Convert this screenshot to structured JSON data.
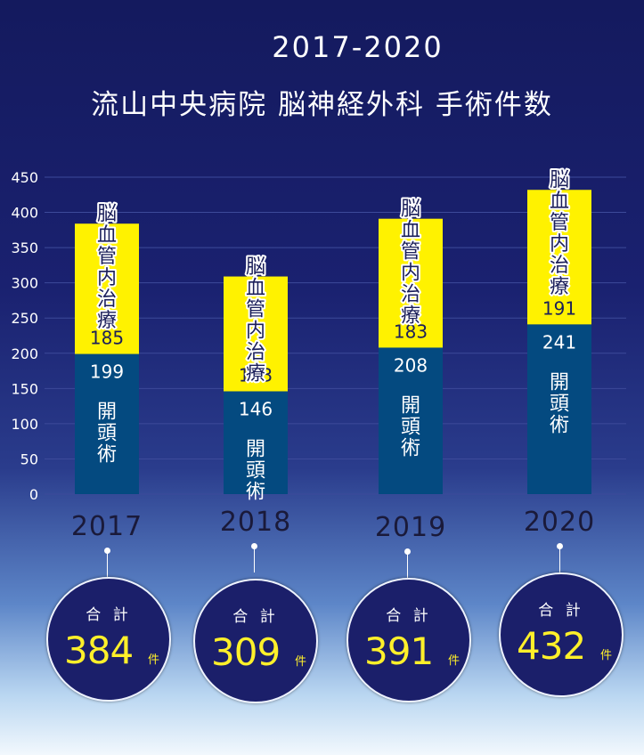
{
  "title": "2017-2020",
  "subtitle": "流山中央病院 脳神経外科 手術件数",
  "chart_data": {
    "type": "bar",
    "stacked": true,
    "categories": [
      "2017",
      "2018",
      "2019",
      "2020"
    ],
    "series": [
      {
        "name": "開頭術",
        "values": [
          199,
          146,
          208,
          241
        ],
        "color": "#044a80"
      },
      {
        "name": "脳血管内治療",
        "values": [
          185,
          163,
          183,
          191
        ],
        "color": "#fff200"
      }
    ],
    "ylim": [
      0,
      450
    ],
    "yticks": [
      "0",
      "50",
      "100",
      "150",
      "200",
      "250",
      "300",
      "350",
      "400",
      "450"
    ],
    "grid": true
  },
  "totals": {
    "label": "合 計",
    "unit": "件",
    "values": [
      "384",
      "309",
      "391",
      "432"
    ]
  }
}
